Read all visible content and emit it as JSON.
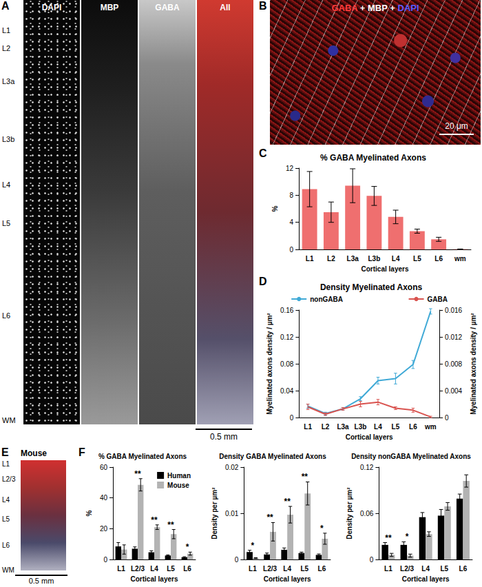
{
  "panel_labels": [
    "A",
    "B",
    "C",
    "D",
    "E",
    "F"
  ],
  "panel_A": {
    "channels": [
      "DAPI",
      "MBP",
      "GABA",
      "All"
    ],
    "layers": [
      "L1",
      "L2",
      "L3a",
      "L3b",
      "L4",
      "L5",
      "L6",
      "WM"
    ],
    "scale_bar": "0.5 mm"
  },
  "panel_B": {
    "title_parts": [
      "GABA",
      "MBP",
      "DAPI"
    ],
    "title_colors": [
      "#ff3b3b",
      "#ffffff",
      "#5a5aff"
    ],
    "separator": " + ",
    "scale_bar": "20 μm"
  },
  "panel_E": {
    "title": "Mouse",
    "layers": [
      "L1",
      "L2/3",
      "L4",
      "L5",
      "L6",
      "WM"
    ],
    "scale_bar": "0.5 mm"
  },
  "chart_data": [
    {
      "type": "bar",
      "title": "% GABA Myelinated Axons",
      "x_label": "Cortical layers",
      "y_label": "%",
      "categories": [
        "L1",
        "L2",
        "L3a",
        "L3b",
        "L4",
        "L5",
        "L6",
        "wm"
      ],
      "values": [
        8.9,
        5.5,
        9.4,
        7.9,
        4.8,
        2.7,
        1.5,
        0.05
      ],
      "errors": [
        2.6,
        1.5,
        2.5,
        1.4,
        1.0,
        0.3,
        0.3,
        0.02
      ],
      "color": "#ef6f6f",
      "ylim": [
        0,
        12
      ],
      "yticks": [
        0,
        4,
        8,
        12
      ]
    },
    {
      "type": "line",
      "title": "Density Myelinated Axons",
      "x_label": "Cortical layers",
      "y_label": "Myelinated axons density / µm²",
      "y2_label": "Myelinated axons density / µm²",
      "categories": [
        "L1",
        "L2",
        "L3a",
        "L3b",
        "L4",
        "L5",
        "L6",
        "wm"
      ],
      "series": [
        {
          "name": "nonGABA",
          "color": "#3fa9d6",
          "values": [
            0.017,
            0.006,
            0.013,
            0.028,
            0.055,
            0.058,
            0.079,
            0.158
          ],
          "errors": [
            0.003,
            0.002,
            0.002,
            0.003,
            0.005,
            0.008,
            0.006,
            0.004
          ]
        },
        {
          "name": "GABA",
          "color": "#d9534f",
          "axis": "y2",
          "values": [
            0.0016,
            0.0005,
            0.0013,
            0.002,
            0.0023,
            0.0014,
            0.0011,
            0.0001
          ],
          "errors": [
            0.0004,
            0.0002,
            0.0002,
            0.0004,
            0.0004,
            0.0002,
            0.0003,
            0.0001
          ]
        }
      ],
      "ylim": [
        0,
        0.16
      ],
      "yticks": [
        0,
        0.04,
        0.08,
        0.12,
        0.16
      ],
      "y2lim": [
        0,
        0.016
      ],
      "y2ticks": [
        0,
        0.004,
        0.008,
        0.012,
        0.016
      ],
      "legend": "top"
    },
    {
      "type": "bar",
      "title": "% GABA Myelinated Axons",
      "x_label": "Cortical layers",
      "y_label": "%",
      "categories": [
        "L1",
        "L2/3",
        "L4",
        "L5",
        "L6"
      ],
      "series": [
        {
          "name": "Human",
          "color": "#000000",
          "values": [
            8.5,
            7,
            4.7,
            2.6,
            1.5
          ],
          "errors": [
            2.5,
            1.2,
            1.0,
            0.4,
            0.3
          ]
        },
        {
          "name": "Mouse",
          "color": "#b3b3b3",
          "values": [
            6.5,
            48.5,
            21,
            16.5,
            3.8
          ],
          "errors": [
            3,
            4,
            1.5,
            3,
            1
          ]
        }
      ],
      "significance": [
        null,
        "**",
        "**",
        "**",
        "*"
      ],
      "ylim": [
        0,
        60
      ],
      "yticks": [
        0,
        20,
        40,
        60
      ],
      "legend": "top right"
    },
    {
      "type": "bar",
      "title": "Density GABA Myelinated Axons",
      "x_label": "Cortical layers",
      "y_label": "Density per µm²",
      "categories": [
        "L1",
        "L2/3",
        "L4",
        "L5",
        "L6"
      ],
      "series": [
        {
          "name": "Human",
          "color": "#000000",
          "values": [
            0.0016,
            0.0011,
            0.0021,
            0.0014,
            0.001
          ],
          "errors": [
            0.0004,
            0.0003,
            0.0004,
            0.0002,
            0.0002
          ]
        },
        {
          "name": "Mouse",
          "color": "#b3b3b3",
          "values": [
            0.0003,
            0.006,
            0.0097,
            0.0143,
            0.0045
          ],
          "errors": [
            0.0001,
            0.002,
            0.0018,
            0.0025,
            0.0012
          ]
        }
      ],
      "significance": [
        "*",
        "**",
        "**",
        "**",
        "*"
      ],
      "ylim": [
        0,
        0.02
      ],
      "yticks": [
        0,
        0.01,
        0.02
      ]
    },
    {
      "type": "bar",
      "title": "Density nonGABA Myelinated Axons",
      "x_label": "Cortical layers",
      "y_label": "Density per µm²",
      "categories": [
        "L1",
        "L2/3",
        "L4",
        "L5",
        "L6"
      ],
      "series": [
        {
          "name": "Human",
          "color": "#000000",
          "values": [
            0.019,
            0.019,
            0.055,
            0.057,
            0.079
          ],
          "errors": [
            0.003,
            0.004,
            0.006,
            0.008,
            0.006
          ]
        },
        {
          "name": "Mouse",
          "color": "#b3b3b3",
          "values": [
            0.006,
            0.005,
            0.033,
            0.069,
            0.102
          ],
          "errors": [
            0.002,
            0.002,
            0.003,
            0.005,
            0.008
          ]
        }
      ],
      "significance": [
        "**",
        "*",
        null,
        null,
        null
      ],
      "ylim": [
        0,
        0.12
      ],
      "yticks": [
        0,
        0.06,
        0.12
      ]
    }
  ]
}
